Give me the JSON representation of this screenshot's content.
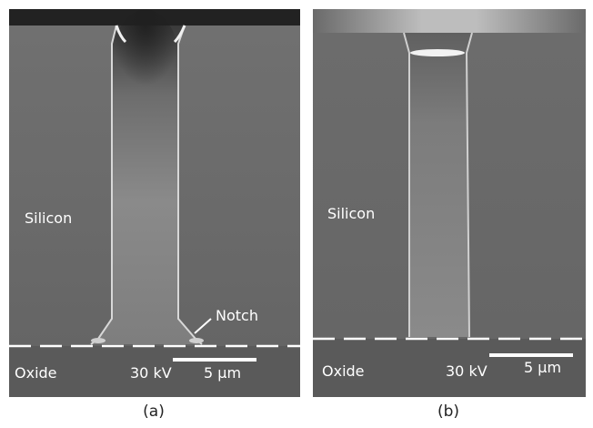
{
  "panels": [
    {
      "caption": "(a)",
      "labels": {
        "region_top": "Silicon",
        "region_bottom": "Oxide",
        "voltage": "30 kV",
        "scale": "5 μm",
        "notch": "Notch"
      }
    },
    {
      "caption": "(b)",
      "labels": {
        "region_top": "Silicon",
        "region_bottom": "Oxide",
        "voltage": "30 kV",
        "scale": "5 μm"
      }
    }
  ],
  "colors": {
    "silicon": "#6e6e6e",
    "trench_interior": "#858585",
    "oxide": "#5a5a5a",
    "annotation": "#ffffff",
    "caption_text": "#222222"
  }
}
